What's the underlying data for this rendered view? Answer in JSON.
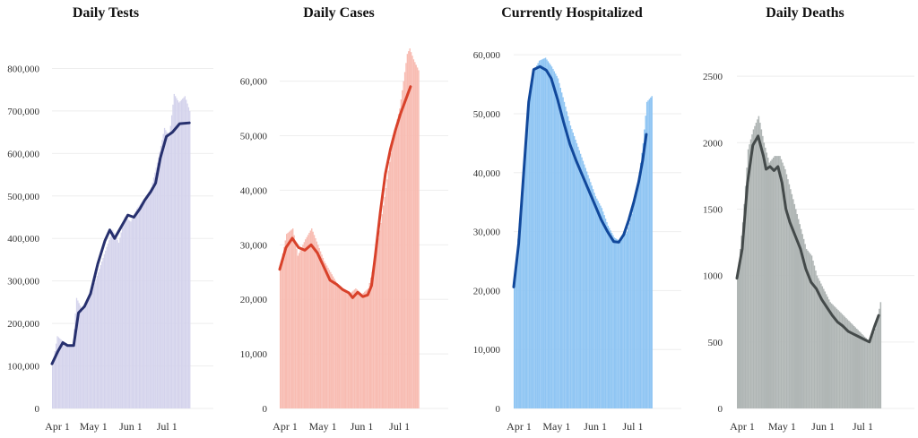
{
  "chart_data": [
    {
      "type": "bar",
      "title": "Daily Tests",
      "color": "#d4d3ec",
      "line_color": "#27306e",
      "ylim": [
        0,
        860000
      ],
      "yticks": [
        0,
        100000,
        200000,
        300000,
        400000,
        500000,
        600000,
        700000,
        800000
      ],
      "ytick_labels": [
        "0",
        "100,000",
        "200,000",
        "300,000",
        "400,000",
        "500,000",
        "600,000",
        "700,000",
        "800,000"
      ],
      "xlim": [
        0,
        134
      ],
      "xticks": [
        0,
        30,
        61,
        91
      ],
      "xtick_labels": [
        "Apr 1",
        "May 1",
        "Jun 1",
        "Jul 1"
      ],
      "grid": true,
      "bars_anchors": [
        [
          0,
          100000
        ],
        [
          4,
          170000
        ],
        [
          8,
          160000
        ],
        [
          12,
          150000
        ],
        [
          17,
          150000
        ],
        [
          20,
          260000
        ],
        [
          25,
          230000
        ],
        [
          30,
          255000
        ],
        [
          38,
          320000
        ],
        [
          45,
          380000
        ],
        [
          50,
          420000
        ],
        [
          55,
          390000
        ],
        [
          60,
          450000
        ],
        [
          65,
          440000
        ],
        [
          70,
          470000
        ],
        [
          78,
          500000
        ],
        [
          82,
          520000
        ],
        [
          88,
          590000
        ],
        [
          93,
          660000
        ],
        [
          97,
          640000
        ],
        [
          101,
          740000
        ],
        [
          105,
          720000
        ],
        [
          110,
          735000
        ],
        [
          114,
          700000
        ]
      ],
      "avg_anchors": [
        [
          0,
          105000
        ],
        [
          5,
          135000
        ],
        [
          9,
          155000
        ],
        [
          13,
          148000
        ],
        [
          18,
          148000
        ],
        [
          22,
          225000
        ],
        [
          27,
          240000
        ],
        [
          32,
          270000
        ],
        [
          38,
          340000
        ],
        [
          44,
          395000
        ],
        [
          48,
          420000
        ],
        [
          52,
          400000
        ],
        [
          58,
          430000
        ],
        [
          63,
          455000
        ],
        [
          68,
          450000
        ],
        [
          73,
          470000
        ],
        [
          77,
          490000
        ],
        [
          82,
          510000
        ],
        [
          86,
          530000
        ],
        [
          90,
          590000
        ],
        [
          95,
          640000
        ],
        [
          100,
          650000
        ],
        [
          106,
          670000
        ],
        [
          114,
          672000
        ]
      ]
    },
    {
      "type": "bar",
      "title": "Daily Cases",
      "color": "#f8bcb2",
      "line_color": "#d8412a",
      "ylim": [
        0,
        67000
      ],
      "yticks": [
        0,
        10000,
        20000,
        30000,
        40000,
        50000,
        60000
      ],
      "ytick_labels": [
        "0",
        "10,000",
        "20,000",
        "30,000",
        "40,000",
        "50,000",
        "60,000"
      ],
      "xlim": [
        0,
        134
      ],
      "xticks": [
        0,
        30,
        61,
        91
      ],
      "xtick_labels": [
        "Apr 1",
        "May 1",
        "Jun 1",
        "Jul 1"
      ],
      "grid": true,
      "bars_anchors": [
        [
          0,
          26000
        ],
        [
          5,
          32000
        ],
        [
          10,
          33000
        ],
        [
          14,
          28000
        ],
        [
          20,
          31000
        ],
        [
          25,
          33000
        ],
        [
          30,
          30000
        ],
        [
          35,
          27000
        ],
        [
          40,
          25000
        ],
        [
          45,
          23000
        ],
        [
          50,
          22000
        ],
        [
          55,
          21000
        ],
        [
          60,
          22000
        ],
        [
          65,
          21000
        ],
        [
          70,
          22000
        ],
        [
          75,
          27000
        ],
        [
          80,
          34000
        ],
        [
          85,
          42000
        ],
        [
          90,
          50000
        ],
        [
          95,
          55000
        ],
        [
          98,
          60000
        ],
        [
          101,
          65000
        ],
        [
          103,
          66000
        ],
        [
          106,
          64000
        ],
        [
          110,
          62000
        ]
      ],
      "avg_anchors": [
        [
          0,
          25500
        ],
        [
          5,
          29500
        ],
        [
          10,
          31200
        ],
        [
          15,
          29500
        ],
        [
          20,
          29000
        ],
        [
          25,
          30000
        ],
        [
          30,
          28500
        ],
        [
          35,
          26000
        ],
        [
          40,
          23500
        ],
        [
          45,
          22800
        ],
        [
          50,
          21800
        ],
        [
          55,
          21200
        ],
        [
          58,
          20300
        ],
        [
          62,
          21300
        ],
        [
          66,
          20500
        ],
        [
          70,
          20800
        ],
        [
          73,
          22500
        ],
        [
          76,
          28000
        ],
        [
          80,
          36000
        ],
        [
          84,
          43000
        ],
        [
          88,
          47500
        ],
        [
          92,
          51000
        ],
        [
          96,
          54000
        ],
        [
          100,
          56500
        ],
        [
          104,
          59000
        ]
      ]
    },
    {
      "type": "bar",
      "title": "Currently Hospitalized",
      "color": "#8fc5f3",
      "line_color": "#11489b",
      "ylim": [
        0,
        62000
      ],
      "yticks": [
        0,
        10000,
        20000,
        30000,
        40000,
        50000,
        60000
      ],
      "ytick_labels": [
        "0",
        "10,000",
        "20,000",
        "30,000",
        "40,000",
        "50,000",
        "60,000"
      ],
      "xlim": [
        0,
        134
      ],
      "xticks": [
        0,
        30,
        61,
        91
      ],
      "xtick_labels": [
        "Apr 1",
        "May 1",
        "Jun 1",
        "Jul 1"
      ],
      "grid": true,
      "bars_anchors": [
        [
          0,
          21000
        ],
        [
          5,
          34000
        ],
        [
          10,
          48000
        ],
        [
          15,
          57000
        ],
        [
          20,
          59000
        ],
        [
          25,
          59500
        ],
        [
          30,
          58000
        ],
        [
          35,
          56000
        ],
        [
          40,
          52000
        ],
        [
          45,
          48000
        ],
        [
          50,
          45000
        ],
        [
          55,
          42000
        ],
        [
          60,
          39000
        ],
        [
          65,
          36000
        ],
        [
          70,
          34000
        ],
        [
          75,
          31000
        ],
        [
          80,
          29000
        ],
        [
          85,
          28300
        ],
        [
          90,
          30000
        ],
        [
          94,
          33000
        ],
        [
          97,
          36000
        ],
        [
          100,
          40000
        ],
        [
          103,
          45000
        ],
        [
          106,
          52000
        ],
        [
          110,
          53000
        ]
      ],
      "avg_anchors": [
        [
          0,
          20600
        ],
        [
          4,
          28000
        ],
        [
          8,
          40000
        ],
        [
          12,
          52000
        ],
        [
          16,
          57500
        ],
        [
          21,
          58000
        ],
        [
          26,
          57400
        ],
        [
          30,
          56000
        ],
        [
          35,
          52500
        ],
        [
          40,
          48500
        ],
        [
          45,
          44800
        ],
        [
          50,
          42000
        ],
        [
          55,
          39500
        ],
        [
          60,
          37000
        ],
        [
          65,
          34500
        ],
        [
          70,
          32000
        ],
        [
          75,
          30000
        ],
        [
          80,
          28300
        ],
        [
          84,
          28200
        ],
        [
          88,
          29500
        ],
        [
          92,
          32000
        ],
        [
          96,
          35000
        ],
        [
          100,
          38500
        ],
        [
          103,
          42000
        ],
        [
          106,
          46500
        ]
      ]
    },
    {
      "type": "bar",
      "title": "Daily Deaths",
      "color": "#b0b6b5",
      "line_color": "#444a4a",
      "ylim": [
        0,
        2750
      ],
      "yticks": [
        0,
        500,
        1000,
        1500,
        2000,
        2500
      ],
      "ytick_labels": [
        "0",
        "500",
        "1000",
        "1500",
        "2000",
        "2500"
      ],
      "xlim": [
        0,
        134
      ],
      "xticks": [
        0,
        30,
        61,
        91
      ],
      "xtick_labels": [
        "Apr 1",
        "May 1",
        "Jun 1",
        "Jul 1"
      ],
      "grid": true,
      "bars_anchors": [
        [
          0,
          1000
        ],
        [
          4,
          1400
        ],
        [
          8,
          1950
        ],
        [
          12,
          2100
        ],
        [
          16,
          2200
        ],
        [
          20,
          2000
        ],
        [
          24,
          1850
        ],
        [
          28,
          1900
        ],
        [
          32,
          1900
        ],
        [
          36,
          1800
        ],
        [
          40,
          1650
        ],
        [
          44,
          1500
        ],
        [
          48,
          1350
        ],
        [
          52,
          1200
        ],
        [
          56,
          1150
        ],
        [
          60,
          1000
        ],
        [
          65,
          900
        ],
        [
          70,
          800
        ],
        [
          75,
          750
        ],
        [
          80,
          700
        ],
        [
          85,
          650
        ],
        [
          90,
          600
        ],
        [
          95,
          550
        ],
        [
          100,
          500
        ],
        [
          104,
          600
        ],
        [
          108,
          800
        ]
      ],
      "avg_anchors": [
        [
          0,
          980
        ],
        [
          4,
          1200
        ],
        [
          8,
          1700
        ],
        [
          12,
          1980
        ],
        [
          16,
          2050
        ],
        [
          20,
          1900
        ],
        [
          22,
          1800
        ],
        [
          25,
          1820
        ],
        [
          28,
          1790
        ],
        [
          31,
          1820
        ],
        [
          34,
          1700
        ],
        [
          37,
          1500
        ],
        [
          40,
          1400
        ],
        [
          44,
          1300
        ],
        [
          48,
          1200
        ],
        [
          52,
          1050
        ],
        [
          56,
          950
        ],
        [
          60,
          900
        ],
        [
          64,
          820
        ],
        [
          68,
          760
        ],
        [
          72,
          700
        ],
        [
          76,
          650
        ],
        [
          80,
          620
        ],
        [
          84,
          580
        ],
        [
          88,
          560
        ],
        [
          92,
          540
        ],
        [
          96,
          520
        ],
        [
          100,
          500
        ],
        [
          104,
          620
        ],
        [
          107,
          700
        ]
      ]
    }
  ]
}
